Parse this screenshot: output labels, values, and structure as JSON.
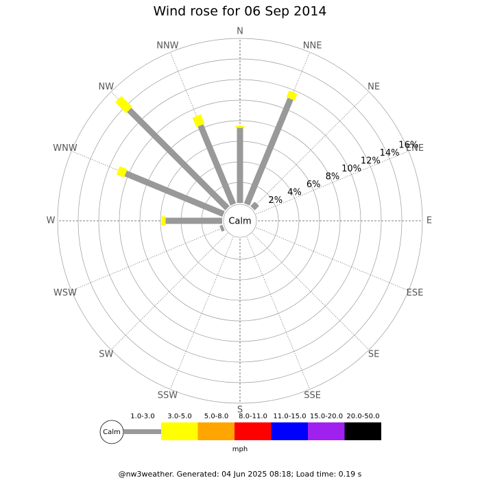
{
  "chart_data": {
    "type": "windrose",
    "title": "Wind rose for 06 Sep 2014",
    "categories": [
      "N",
      "NNE",
      "NE",
      "ENE",
      "E",
      "ESE",
      "SE",
      "SSE",
      "S",
      "SSW",
      "SW",
      "WSW",
      "W",
      "WNW",
      "NW",
      "NNW"
    ],
    "center_label": "Calm",
    "rlim": [
      0,
      16
    ],
    "rticks": [
      {
        "value": 2,
        "label": "2%"
      },
      {
        "value": 4,
        "label": "4%"
      },
      {
        "value": 6,
        "label": "6%"
      },
      {
        "value": 8,
        "label": "8%"
      },
      {
        "value": 10,
        "label": "10%"
      },
      {
        "value": 12,
        "label": "12%"
      },
      {
        "value": 14,
        "label": "14%"
      },
      {
        "value": 16,
        "label": "16%"
      }
    ],
    "series": [
      {
        "name": "1.0-3.0",
        "color": "#999999",
        "values": [
          7.3,
          11.1,
          0.6,
          0,
          0,
          0,
          0,
          0,
          0,
          0,
          0,
          0.3,
          5.5,
          10.3,
          13.5,
          8.3
        ]
      },
      {
        "name": "3.0-5.0",
        "color": "#ffff00",
        "values": [
          0.2,
          0.7,
          0,
          0,
          0,
          0,
          0,
          0,
          0,
          0,
          0,
          0,
          0.4,
          0.8,
          1.5,
          1.0
        ]
      },
      {
        "name": "5.0-8.0",
        "color": "#ffa500",
        "values": [
          0,
          0,
          0,
          0,
          0,
          0,
          0,
          0,
          0,
          0,
          0,
          0,
          0,
          0,
          0,
          0
        ]
      },
      {
        "name": "8.0-11.0",
        "color": "#ff0000",
        "values": [
          0,
          0,
          0,
          0,
          0,
          0,
          0,
          0,
          0,
          0,
          0,
          0,
          0,
          0,
          0,
          0
        ]
      },
      {
        "name": "11.0-15.0",
        "color": "#0000ff",
        "values": [
          0,
          0,
          0,
          0,
          0,
          0,
          0,
          0,
          0,
          0,
          0,
          0,
          0,
          0,
          0,
          0
        ]
      },
      {
        "name": "15.0-20.0",
        "color": "#a020f0",
        "values": [
          0,
          0,
          0,
          0,
          0,
          0,
          0,
          0,
          0,
          0,
          0,
          0,
          0,
          0,
          0,
          0
        ]
      },
      {
        "name": "20.0-50.0",
        "color": "#000000",
        "values": [
          0,
          0,
          0,
          0,
          0,
          0,
          0,
          0,
          0,
          0,
          0,
          0,
          0,
          0,
          0,
          0
        ]
      }
    ],
    "legend_title": "mph",
    "footer": "@nw3weather. Generated: 04 Jun 2025 08:18; Load time: 0.19 s"
  }
}
